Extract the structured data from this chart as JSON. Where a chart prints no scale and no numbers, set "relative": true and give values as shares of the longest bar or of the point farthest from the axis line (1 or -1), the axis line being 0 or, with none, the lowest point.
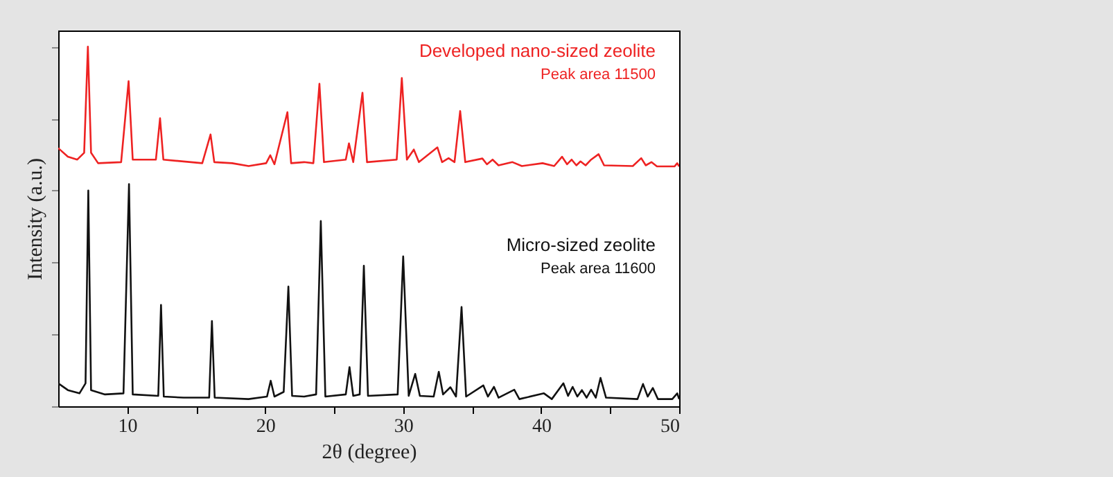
{
  "chart_data": {
    "type": "line",
    "relative": true,
    "xlabel": "2θ (degree)",
    "ylabel": "Intensity (a.u.)",
    "xlim": [
      5,
      50
    ],
    "xticks": [
      10,
      {
        "value": 15,
        "label": null
      },
      20,
      {
        "value": 25,
        "label": null
      },
      30,
      {
        "value": 35,
        "label": null
      },
      40,
      {
        "value": 45,
        "label": null
      },
      50
    ],
    "tick_labels": "x",
    "grid": false,
    "marker": "none",
    "line_style": "solid",
    "annotations": [
      "Peak area 11500",
      "Peak area 11600"
    ],
    "series": [
      {
        "name": "Developed nano-sized zeolite",
        "color": "#ee2222",
        "x": [
          5,
          5.7,
          6.38,
          6.88,
          7.15,
          7.38,
          7.89,
          9.56,
          10.1,
          10.4,
          12.08,
          12.38,
          12.62,
          15.44,
          16.04,
          16.31,
          17.6,
          18.8,
          20.07,
          20.37,
          20.67,
          21.61,
          21.88,
          22.82,
          23.49,
          23.93,
          24.26,
          25.84,
          26.07,
          26.38,
          27.05,
          27.38,
          29.53,
          29.9,
          30.27,
          30.77,
          31.14,
          32.48,
          32.82,
          33.29,
          33.72,
          34.13,
          34.5,
          35.74,
          36.07,
          36.48,
          36.91,
          37.92,
          38.6,
          40.1,
          40.94,
          41.51,
          41.88,
          42.21,
          42.55,
          42.85,
          43.22,
          43.62,
          44.16,
          44.56,
          46.64,
          47.25,
          47.58,
          47.99,
          48.39,
          49.66,
          49.86,
          50
        ],
        "values": [
          0.718,
          0.694,
          0.686,
          0.705,
          1.0,
          0.705,
          0.676,
          0.679,
          0.904,
          0.686,
          0.686,
          0.801,
          0.686,
          0.676,
          0.756,
          0.679,
          0.676,
          0.668,
          0.676,
          0.698,
          0.673,
          0.818,
          0.676,
          0.679,
          0.676,
          0.897,
          0.679,
          0.686,
          0.731,
          0.679,
          0.872,
          0.679,
          0.686,
          0.913,
          0.686,
          0.714,
          0.679,
          0.72,
          0.679,
          0.69,
          0.679,
          0.821,
          0.679,
          0.689,
          0.673,
          0.686,
          0.67,
          0.679,
          0.668,
          0.676,
          0.668,
          0.694,
          0.673,
          0.686,
          0.67,
          0.681,
          0.67,
          0.686,
          0.701,
          0.67,
          0.668,
          0.69,
          0.67,
          0.679,
          0.667,
          0.667,
          0.676,
          0.667
        ]
      },
      {
        "name": "Micro-sized zeolite",
        "color": "#111111",
        "x": [
          5,
          5.7,
          6.54,
          6.98,
          7.18,
          7.38,
          8.39,
          9.73,
          10.13,
          10.4,
          12.25,
          12.45,
          12.65,
          14.09,
          15.94,
          16.14,
          16.34,
          18.79,
          20.13,
          20.4,
          20.67,
          21.34,
          21.68,
          21.95,
          22.82,
          23.69,
          24.03,
          24.36,
          25.84,
          26.11,
          26.38,
          26.85,
          27.15,
          27.45,
          29.6,
          30.0,
          30.4,
          30.87,
          31.21,
          32.21,
          32.58,
          32.89,
          33.42,
          33.83,
          34.23,
          34.56,
          35.81,
          36.14,
          36.58,
          36.91,
          38.05,
          38.42,
          40.2,
          40.77,
          41.61,
          41.95,
          42.28,
          42.62,
          42.95,
          43.29,
          43.62,
          43.96,
          44.3,
          44.7,
          46.98,
          47.38,
          47.72,
          48.09,
          48.46,
          49.5,
          49.86,
          50
        ],
        "values": [
          0.064,
          0.045,
          0.036,
          0.064,
          0.6,
          0.045,
          0.033,
          0.036,
          0.618,
          0.033,
          0.029,
          0.282,
          0.027,
          0.024,
          0.024,
          0.237,
          0.024,
          0.02,
          0.027,
          0.071,
          0.027,
          0.04,
          0.333,
          0.029,
          0.027,
          0.033,
          0.515,
          0.027,
          0.033,
          0.109,
          0.029,
          0.033,
          0.391,
          0.029,
          0.033,
          0.417,
          0.029,
          0.09,
          0.029,
          0.027,
          0.096,
          0.033,
          0.053,
          0.027,
          0.276,
          0.027,
          0.058,
          0.027,
          0.054,
          0.024,
          0.046,
          0.02,
          0.036,
          0.02,
          0.064,
          0.029,
          0.054,
          0.027,
          0.045,
          0.024,
          0.046,
          0.024,
          0.079,
          0.024,
          0.02,
          0.062,
          0.027,
          0.051,
          0.02,
          0.02,
          0.036,
          0.02
        ]
      }
    ]
  }
}
